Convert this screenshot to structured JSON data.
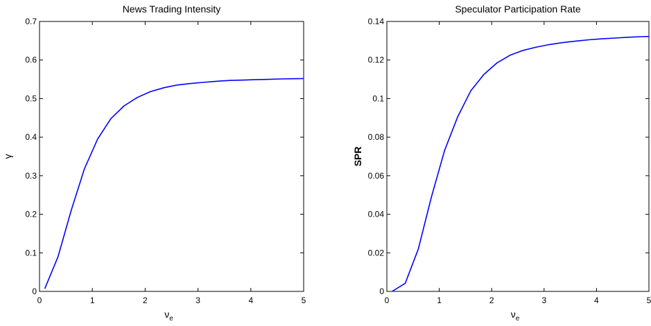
{
  "chart_data": [
    {
      "type": "line",
      "title": "News Trading Intensity",
      "xlabel": "ν",
      "xlabel_sub": "e",
      "ylabel": "γ",
      "xlim": [
        0,
        5
      ],
      "ylim": [
        0,
        0.7
      ],
      "xticks": [
        "0",
        "1",
        "2",
        "3",
        "4",
        "5"
      ],
      "yticks": [
        "0",
        "0.1",
        "0.2",
        "0.3",
        "0.4",
        "0.5",
        "0.6",
        "0.7"
      ],
      "color": "#0000ff",
      "series": [
        {
          "x": [
            0.1,
            0.35,
            0.6,
            0.85,
            1.1,
            1.35,
            1.6,
            1.85,
            2.1,
            2.35,
            2.6,
            2.85,
            3.1,
            3.35,
            3.6,
            3.85,
            4.1,
            4.35,
            4.6,
            4.85,
            5.0
          ],
          "y": [
            0.007,
            0.09,
            0.21,
            0.318,
            0.395,
            0.448,
            0.481,
            0.503,
            0.518,
            0.528,
            0.535,
            0.539,
            0.542,
            0.545,
            0.547,
            0.548,
            0.549,
            0.55,
            0.551,
            0.5515,
            0.552
          ]
        }
      ]
    },
    {
      "type": "line",
      "title": "Speculator Participation Rate",
      "xlabel": "ν",
      "xlabel_sub": "e",
      "ylabel": "SPR",
      "xlim": [
        0,
        5
      ],
      "ylim": [
        0,
        0.14
      ],
      "xticks": [
        "0",
        "1",
        "2",
        "3",
        "4",
        "5"
      ],
      "yticks": [
        "0",
        "0.02",
        "0.04",
        "0.06",
        "0.08",
        "0.1",
        "0.12",
        "0.14"
      ],
      "color": "#0000ff",
      "series": [
        {
          "x": [
            0.1,
            0.35,
            0.6,
            0.85,
            1.1,
            1.35,
            1.6,
            1.85,
            2.1,
            2.35,
            2.6,
            2.85,
            3.1,
            3.35,
            3.6,
            3.85,
            4.1,
            4.35,
            4.6,
            4.85,
            5.0
          ],
          "y": [
            0.0,
            0.0042,
            0.022,
            0.049,
            0.073,
            0.0905,
            0.104,
            0.1125,
            0.1185,
            0.1225,
            0.125,
            0.1267,
            0.128,
            0.129,
            0.1298,
            0.1305,
            0.131,
            0.1314,
            0.1318,
            0.1321,
            0.1322
          ]
        }
      ]
    }
  ]
}
